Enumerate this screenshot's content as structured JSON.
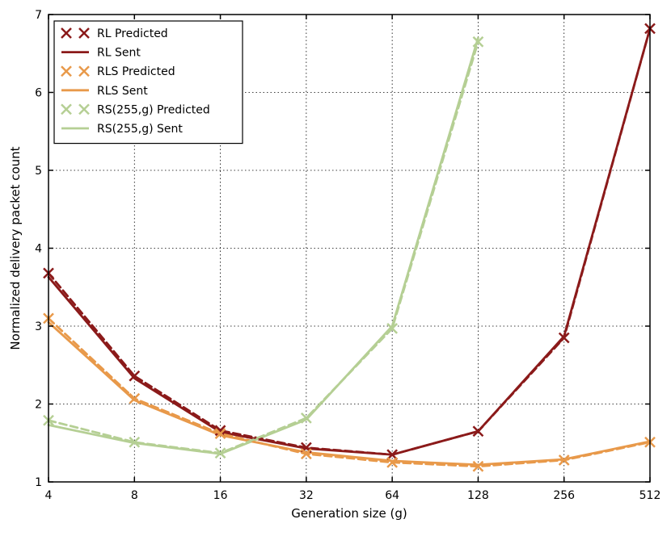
{
  "chart_data": {
    "type": "line",
    "title": "",
    "xlabel": "Generation size (g)",
    "ylabel": "Normalized delivery packet count",
    "x_scale": "log2",
    "x": [
      4,
      8,
      16,
      32,
      64,
      128,
      256,
      512
    ],
    "x_tick_labels": [
      "4",
      "8",
      "16",
      "32",
      "64",
      "128",
      "256",
      "512"
    ],
    "xlim": [
      4,
      512
    ],
    "ylim": [
      1,
      7
    ],
    "y_ticks": [
      1,
      2,
      3,
      4,
      5,
      6,
      7
    ],
    "y_tick_labels": [
      "1",
      "2",
      "3",
      "4",
      "5",
      "6",
      "7"
    ],
    "grid": true,
    "grid_style": "dotted",
    "legend_position": "top-left",
    "series": [
      {
        "name": "RL Predicted",
        "color": "#8b1a1a",
        "style": "dashed-with-x-markers",
        "x": [
          4,
          8,
          16,
          32,
          64,
          128,
          256,
          512
        ],
        "values": [
          3.68,
          2.36,
          1.66,
          1.44,
          1.35,
          1.65,
          2.85,
          6.82
        ]
      },
      {
        "name": "RL Sent",
        "color": "#8b1a1a",
        "style": "solid",
        "x": [
          4,
          8,
          16,
          32,
          64,
          128,
          256,
          512
        ],
        "values": [
          3.63,
          2.33,
          1.64,
          1.43,
          1.35,
          1.65,
          2.87,
          6.82
        ]
      },
      {
        "name": "RLS Predicted",
        "color": "#e8994a",
        "style": "dashed-with-x-markers",
        "x": [
          4,
          8,
          16,
          32,
          64,
          128,
          256,
          512
        ],
        "values": [
          3.1,
          2.07,
          1.62,
          1.36,
          1.25,
          1.2,
          1.28,
          1.51
        ]
      },
      {
        "name": "RLS Sent",
        "color": "#e8994a",
        "style": "solid",
        "x": [
          4,
          8,
          16,
          32,
          64,
          128,
          256,
          512
        ],
        "values": [
          3.05,
          2.05,
          1.6,
          1.38,
          1.27,
          1.22,
          1.29,
          1.52
        ]
      },
      {
        "name": "RS(255,g) Predicted",
        "color": "#b5cf94",
        "style": "dashed-with-x-markers",
        "x": [
          4,
          8,
          16,
          32,
          64,
          128
        ],
        "values": [
          1.79,
          1.51,
          1.37,
          1.82,
          2.97,
          6.65
        ]
      },
      {
        "name": "RS(255,g) Sent",
        "color": "#b5cf94",
        "style": "solid",
        "x": [
          4,
          8,
          16,
          32,
          64,
          128
        ],
        "values": [
          1.73,
          1.5,
          1.36,
          1.8,
          3.0,
          6.7
        ]
      }
    ]
  }
}
